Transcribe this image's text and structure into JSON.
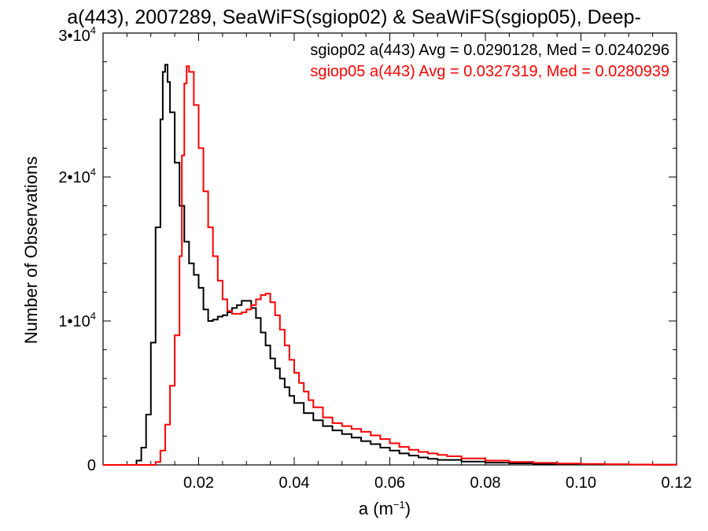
{
  "chart_data": {
    "type": "line",
    "title": "a(443), 2007289, SeaWiFS(sgiop02) & SeaWiFS(sgiop05), Deep-",
    "xlabel": "a (m⁻¹)",
    "ylabel": "Number of Observations",
    "xlim": [
      0.0,
      0.12
    ],
    "ylim": [
      0,
      30000
    ],
    "x_ticks": [
      0.02,
      0.04,
      0.06,
      0.08,
      0.1,
      0.12
    ],
    "x_tick_labels": [
      "0.02",
      "0.04",
      "0.06",
      "0.08",
      "0.10",
      "0.12"
    ],
    "y_ticks": [
      0,
      10000,
      20000,
      30000
    ],
    "y_tick_labels": [
      {
        "mantissa": "0",
        "exp": ""
      },
      {
        "mantissa": "1•10",
        "exp": "4"
      },
      {
        "mantissa": "2•10",
        "exp": "4"
      },
      {
        "mantissa": "3•10",
        "exp": "4"
      }
    ],
    "legend": [
      {
        "text": "sgiop02 a(443) Avg = 0.0290128, Med = 0.0240296",
        "color": "#000000"
      },
      {
        "text": "sgiop05 a(443) Avg = 0.0327319, Med = 0.0280939",
        "color": "#ff0000"
      }
    ],
    "legend_position": "top-right",
    "series": [
      {
        "color": "#000000",
        "step": true,
        "points": [
          [
            0.0,
            0
          ],
          [
            0.006,
            0
          ],
          [
            0.007,
            300
          ],
          [
            0.008,
            1200
          ],
          [
            0.009,
            3500
          ],
          [
            0.01,
            8500
          ],
          [
            0.011,
            16500
          ],
          [
            0.012,
            24000
          ],
          [
            0.0125,
            27300
          ],
          [
            0.013,
            27800
          ],
          [
            0.0135,
            26600
          ],
          [
            0.014,
            24500
          ],
          [
            0.015,
            21000
          ],
          [
            0.016,
            18000
          ],
          [
            0.017,
            15500
          ],
          [
            0.018,
            14000
          ],
          [
            0.019,
            13200
          ],
          [
            0.02,
            12300
          ],
          [
            0.021,
            10800
          ],
          [
            0.022,
            10000
          ],
          [
            0.023,
            10100
          ],
          [
            0.024,
            10300
          ],
          [
            0.025,
            10400
          ],
          [
            0.026,
            10600
          ],
          [
            0.027,
            10900
          ],
          [
            0.028,
            11100
          ],
          [
            0.029,
            11400
          ],
          [
            0.03,
            11400
          ],
          [
            0.031,
            10900
          ],
          [
            0.032,
            10200
          ],
          [
            0.033,
            9200
          ],
          [
            0.034,
            8300
          ],
          [
            0.035,
            7400
          ],
          [
            0.036,
            6700
          ],
          [
            0.037,
            6000
          ],
          [
            0.038,
            5400
          ],
          [
            0.039,
            4800
          ],
          [
            0.04,
            4300
          ],
          [
            0.042,
            3600
          ],
          [
            0.044,
            3100
          ],
          [
            0.046,
            2700
          ],
          [
            0.048,
            2400
          ],
          [
            0.05,
            2150
          ],
          [
            0.052,
            1900
          ],
          [
            0.054,
            1650
          ],
          [
            0.056,
            1450
          ],
          [
            0.058,
            1200
          ],
          [
            0.06,
            1000
          ],
          [
            0.062,
            800
          ],
          [
            0.064,
            650
          ],
          [
            0.066,
            520
          ],
          [
            0.068,
            420
          ],
          [
            0.07,
            350
          ],
          [
            0.075,
            230
          ],
          [
            0.08,
            160
          ],
          [
            0.085,
            110
          ],
          [
            0.09,
            80
          ],
          [
            0.095,
            60
          ],
          [
            0.1,
            45
          ],
          [
            0.105,
            30
          ],
          [
            0.11,
            20
          ],
          [
            0.115,
            10
          ],
          [
            0.12,
            0
          ]
        ]
      },
      {
        "color": "#ff0000",
        "step": true,
        "points": [
          [
            0.0,
            0
          ],
          [
            0.01,
            0
          ],
          [
            0.011,
            200
          ],
          [
            0.012,
            1000
          ],
          [
            0.013,
            2800
          ],
          [
            0.014,
            5500
          ],
          [
            0.015,
            9000
          ],
          [
            0.016,
            14500
          ],
          [
            0.0165,
            21500
          ],
          [
            0.017,
            26500
          ],
          [
            0.0175,
            27700
          ],
          [
            0.018,
            27300
          ],
          [
            0.019,
            25000
          ],
          [
            0.02,
            22000
          ],
          [
            0.021,
            19000
          ],
          [
            0.022,
            16500
          ],
          [
            0.023,
            14500
          ],
          [
            0.024,
            12800
          ],
          [
            0.025,
            11500
          ],
          [
            0.026,
            10700
          ],
          [
            0.027,
            10500
          ],
          [
            0.028,
            10500
          ],
          [
            0.029,
            10600
          ],
          [
            0.03,
            10800
          ],
          [
            0.031,
            11100
          ],
          [
            0.032,
            11500
          ],
          [
            0.033,
            11800
          ],
          [
            0.034,
            11900
          ],
          [
            0.035,
            11300
          ],
          [
            0.036,
            10400
          ],
          [
            0.037,
            9400
          ],
          [
            0.038,
            8300
          ],
          [
            0.039,
            7300
          ],
          [
            0.04,
            6400
          ],
          [
            0.041,
            5700
          ],
          [
            0.042,
            5100
          ],
          [
            0.043,
            4500
          ],
          [
            0.044,
            4000
          ],
          [
            0.046,
            3300
          ],
          [
            0.048,
            2900
          ],
          [
            0.05,
            2700
          ],
          [
            0.052,
            2500
          ],
          [
            0.054,
            2300
          ],
          [
            0.056,
            2050
          ],
          [
            0.058,
            1800
          ],
          [
            0.06,
            1500
          ],
          [
            0.062,
            1250
          ],
          [
            0.064,
            1050
          ],
          [
            0.066,
            900
          ],
          [
            0.068,
            800
          ],
          [
            0.07,
            700
          ],
          [
            0.072,
            600
          ],
          [
            0.075,
            450
          ],
          [
            0.08,
            300
          ],
          [
            0.085,
            200
          ],
          [
            0.09,
            140
          ],
          [
            0.095,
            100
          ],
          [
            0.1,
            70
          ],
          [
            0.105,
            50
          ],
          [
            0.11,
            30
          ],
          [
            0.115,
            15
          ],
          [
            0.12,
            0
          ]
        ]
      }
    ]
  }
}
